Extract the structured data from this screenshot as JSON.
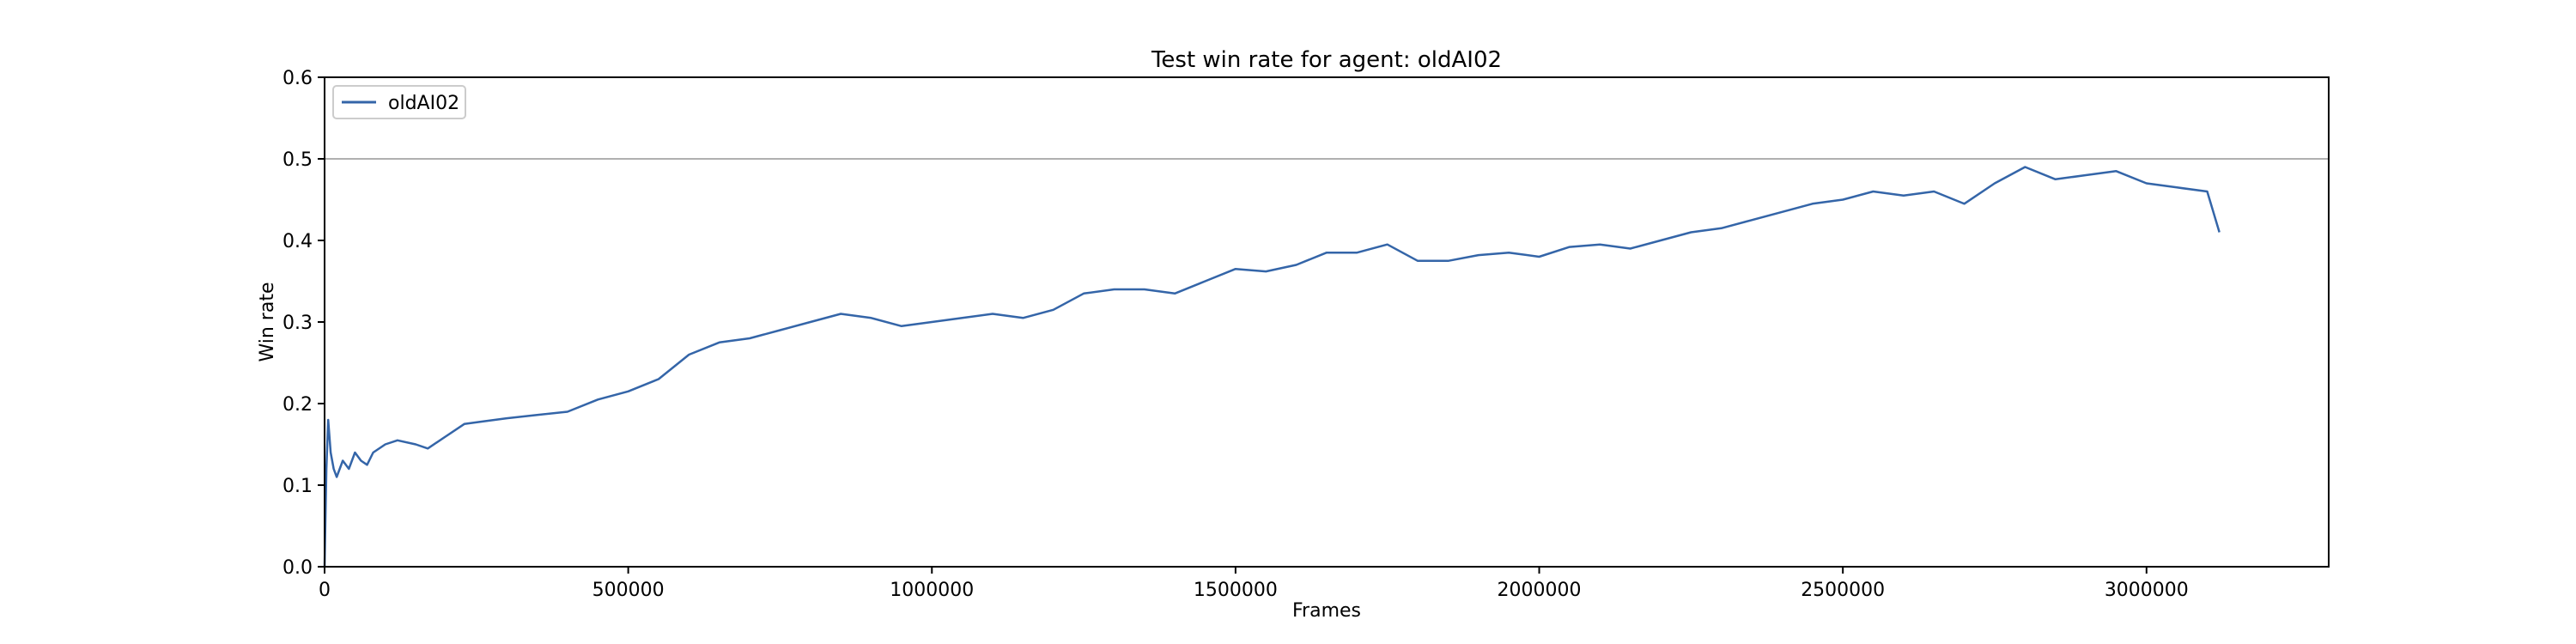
{
  "chart_data": {
    "type": "line",
    "title": "Test win rate for agent: oldAI02",
    "xlabel": "Frames",
    "ylabel": "Win rate",
    "xlim": [
      0,
      3300000
    ],
    "ylim": [
      0,
      0.6
    ],
    "xticks": [
      "0",
      "500000",
      "1000000",
      "1500000",
      "2000000",
      "2500000",
      "3000000"
    ],
    "yticks": [
      "0.0",
      "0.1",
      "0.2",
      "0.3",
      "0.4",
      "0.5",
      "0.6"
    ],
    "grid": false,
    "legend_position": "top-left",
    "reference_line": {
      "y": 0.5,
      "color": "#b0b0b0"
    },
    "series": [
      {
        "name": "oldAI02",
        "color": "#3465a8",
        "points": [
          [
            0,
            0.0
          ],
          [
            3000,
            0.12
          ],
          [
            6000,
            0.18
          ],
          [
            10000,
            0.14
          ],
          [
            15000,
            0.12
          ],
          [
            20000,
            0.11
          ],
          [
            30000,
            0.13
          ],
          [
            40000,
            0.12
          ],
          [
            50000,
            0.14
          ],
          [
            60000,
            0.13
          ],
          [
            70000,
            0.125
          ],
          [
            80000,
            0.14
          ],
          [
            100000,
            0.15
          ],
          [
            120000,
            0.155
          ],
          [
            150000,
            0.15
          ],
          [
            170000,
            0.145
          ],
          [
            200000,
            0.16
          ],
          [
            230000,
            0.175
          ],
          [
            260000,
            0.178
          ],
          [
            300000,
            0.182
          ],
          [
            350000,
            0.186
          ],
          [
            400000,
            0.19
          ],
          [
            450000,
            0.205
          ],
          [
            500000,
            0.215
          ],
          [
            550000,
            0.23
          ],
          [
            600000,
            0.26
          ],
          [
            650000,
            0.275
          ],
          [
            700000,
            0.28
          ],
          [
            750000,
            0.29
          ],
          [
            800000,
            0.3
          ],
          [
            850000,
            0.31
          ],
          [
            900000,
            0.305
          ],
          [
            950000,
            0.295
          ],
          [
            1000000,
            0.3
          ],
          [
            1050000,
            0.305
          ],
          [
            1100000,
            0.31
          ],
          [
            1150000,
            0.305
          ],
          [
            1200000,
            0.315
          ],
          [
            1250000,
            0.335
          ],
          [
            1300000,
            0.34
          ],
          [
            1350000,
            0.34
          ],
          [
            1400000,
            0.335
          ],
          [
            1450000,
            0.35
          ],
          [
            1500000,
            0.365
          ],
          [
            1550000,
            0.362
          ],
          [
            1600000,
            0.37
          ],
          [
            1650000,
            0.385
          ],
          [
            1700000,
            0.385
          ],
          [
            1750000,
            0.395
          ],
          [
            1800000,
            0.375
          ],
          [
            1850000,
            0.375
          ],
          [
            1900000,
            0.382
          ],
          [
            1950000,
            0.385
          ],
          [
            2000000,
            0.38
          ],
          [
            2050000,
            0.392
          ],
          [
            2100000,
            0.395
          ],
          [
            2150000,
            0.39
          ],
          [
            2200000,
            0.4
          ],
          [
            2250000,
            0.41
          ],
          [
            2300000,
            0.415
          ],
          [
            2350000,
            0.425
          ],
          [
            2400000,
            0.435
          ],
          [
            2450000,
            0.445
          ],
          [
            2500000,
            0.45
          ],
          [
            2550000,
            0.46
          ],
          [
            2600000,
            0.455
          ],
          [
            2650000,
            0.46
          ],
          [
            2700000,
            0.445
          ],
          [
            2750000,
            0.47
          ],
          [
            2800000,
            0.49
          ],
          [
            2850000,
            0.475
          ],
          [
            2900000,
            0.48
          ],
          [
            2950000,
            0.485
          ],
          [
            3000000,
            0.47
          ],
          [
            3050000,
            0.465
          ],
          [
            3100000,
            0.46
          ],
          [
            3120000,
            0.41
          ]
        ]
      }
    ]
  }
}
